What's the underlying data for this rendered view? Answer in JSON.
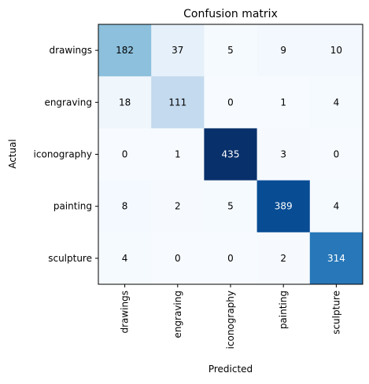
{
  "chart_data": {
    "type": "heatmap",
    "title": "Confusion matrix",
    "xlabel": "Predicted",
    "ylabel": "Actual",
    "x_categories": [
      "drawings",
      "engraving",
      "iconography",
      "painting",
      "sculpture"
    ],
    "y_categories": [
      "drawings",
      "engraving",
      "iconography",
      "painting",
      "sculpture"
    ],
    "values": [
      [
        182,
        37,
        5,
        9,
        10
      ],
      [
        18,
        111,
        0,
        1,
        4
      ],
      [
        0,
        1,
        435,
        3,
        0
      ],
      [
        8,
        2,
        5,
        389,
        4
      ],
      [
        4,
        0,
        0,
        2,
        314
      ]
    ],
    "colormap": "Blues",
    "color_low": "#f7fbff",
    "color_high": "#08306b",
    "value_range": [
      0,
      435
    ],
    "grid": false
  }
}
